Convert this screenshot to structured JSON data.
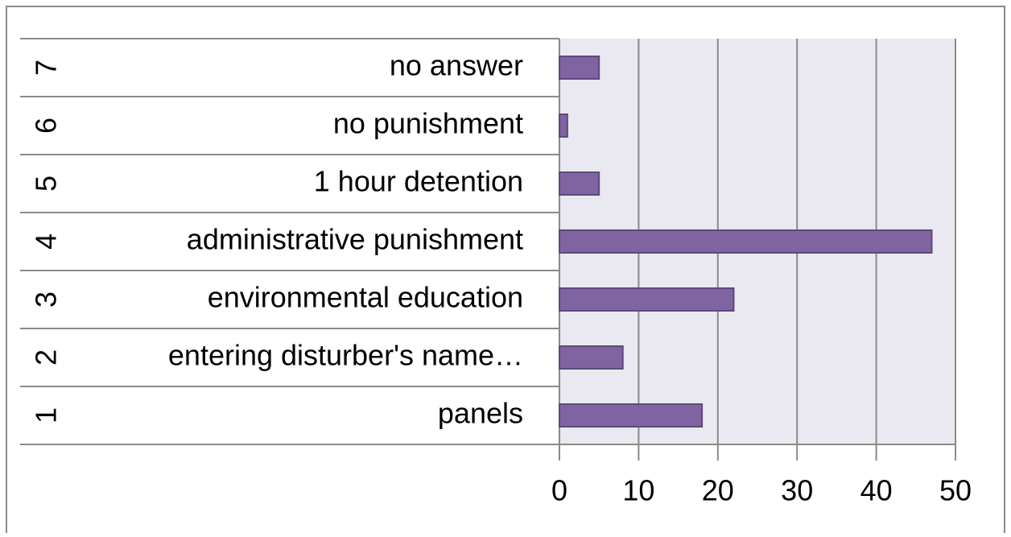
{
  "chart_data": {
    "type": "bar",
    "orientation": "horizontal",
    "groups": [
      "1",
      "2",
      "3",
      "4",
      "5",
      "6",
      "7"
    ],
    "categories": [
      "panels",
      "entering disturber's name…",
      "environmental education",
      "administrative punishment",
      "1 hour detention",
      "no punishment",
      "no answer"
    ],
    "values": [
      18,
      8,
      22,
      47,
      5,
      1,
      5
    ],
    "color": "#8064a2",
    "xlim": [
      0,
      50
    ],
    "xticks": [
      0,
      10,
      20,
      30,
      40,
      50
    ],
    "grid": true
  }
}
